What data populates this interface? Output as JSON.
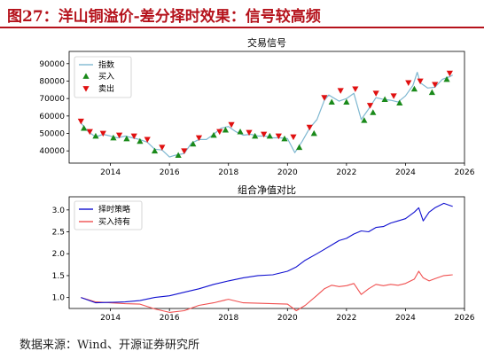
{
  "figure_title": "图27：洋山铜溢价-差分择时效果：信号较高频",
  "source": "数据来源：Wind、开源证券研究所",
  "colors": {
    "title_red": "#b5121b",
    "price_line": "#7fb8d1",
    "buy_marker": "#1a8a1a",
    "sell_marker": "#e01010",
    "strategy_line": "#1010d0",
    "hold_line": "#f05050"
  },
  "chart_data": [
    {
      "type": "line",
      "title": "交易信号",
      "xlabel": "",
      "ylabel": "",
      "xlim": [
        2012.6,
        2026.0
      ],
      "ylim": [
        33000,
        97000
      ],
      "xticks": [
        "2014",
        "2016",
        "2018",
        "2020",
        "2022",
        "2024",
        "2026"
      ],
      "yticks": [
        "40000",
        "50000",
        "60000",
        "70000",
        "80000",
        "90000"
      ],
      "grid": false,
      "legend_placement": "top-left",
      "legend": [
        {
          "label": "指数",
          "kind": "line"
        },
        {
          "label": "买入",
          "kind": "triangle-up"
        },
        {
          "label": "卖出",
          "kind": "triangle-down"
        }
      ],
      "series": [
        {
          "name": "指数",
          "x": [
            2013.0,
            2013.25,
            2013.5,
            2013.75,
            2014.0,
            2014.25,
            2014.5,
            2014.75,
            2015.0,
            2015.25,
            2015.5,
            2015.75,
            2016.0,
            2016.2,
            2016.5,
            2016.75,
            2017.0,
            2017.25,
            2017.5,
            2017.75,
            2018.0,
            2018.25,
            2018.5,
            2018.75,
            2019.0,
            2019.25,
            2019.5,
            2019.75,
            2020.0,
            2020.25,
            2020.5,
            2020.75,
            2021.0,
            2021.25,
            2021.4,
            2021.75,
            2022.0,
            2022.25,
            2022.5,
            2022.75,
            2023.0,
            2023.25,
            2023.5,
            2023.75,
            2024.0,
            2024.25,
            2024.4,
            2024.5,
            2024.75,
            2025.0,
            2025.25,
            2025.5,
            2025.6
          ],
          "values": [
            56000,
            51000,
            48000,
            49500,
            48500,
            47500,
            48500,
            47500,
            46500,
            45000,
            41000,
            40500,
            36500,
            37500,
            38500,
            44500,
            46500,
            46500,
            49500,
            53000,
            54000,
            51000,
            49000,
            49500,
            48500,
            48500,
            47500,
            47500,
            47000,
            39000,
            45500,
            53000,
            58000,
            69000,
            72000,
            68500,
            70000,
            73000,
            58000,
            64000,
            70500,
            69500,
            69000,
            68000,
            71500,
            77500,
            85000,
            79000,
            76000,
            76500,
            81000,
            82500,
            83500
          ]
        }
      ],
      "signals": {
        "buy": {
          "x": [
            2013.1,
            2013.5,
            2014.1,
            2014.55,
            2015.0,
            2015.5,
            2016.3,
            2016.8,
            2017.5,
            2017.9,
            2018.4,
            2018.9,
            2019.4,
            2019.9,
            2020.4,
            2020.9,
            2021.5,
            2022.0,
            2022.6,
            2022.9,
            2023.3,
            2023.8,
            2024.3,
            2024.9,
            2025.4
          ],
          "values": [
            53000,
            48500,
            47500,
            47000,
            45500,
            40000,
            37500,
            44000,
            49000,
            52000,
            51000,
            48500,
            48500,
            47000,
            42000,
            50000,
            68000,
            68000,
            57500,
            62000,
            69500,
            67500,
            75500,
            73500,
            81000
          ]
        },
        "sell": {
          "x": [
            2013.0,
            2013.3,
            2013.75,
            2014.3,
            2014.8,
            2015.25,
            2015.75,
            2016.5,
            2017.0,
            2017.7,
            2018.1,
            2018.7,
            2019.2,
            2019.7,
            2020.2,
            2020.75,
            2021.25,
            2021.8,
            2022.3,
            2022.8,
            2023.0,
            2023.6,
            2024.1,
            2024.5,
            2025.0,
            2025.5
          ],
          "values": [
            57000,
            51000,
            50000,
            49000,
            48500,
            46500,
            42000,
            40000,
            47500,
            51000,
            55000,
            50500,
            49500,
            48500,
            48000,
            53500,
            70500,
            74500,
            75500,
            66000,
            73000,
            71500,
            79000,
            80000,
            78000,
            84500
          ]
        }
      }
    },
    {
      "type": "line",
      "title": "组合净值对比",
      "xlabel": "",
      "ylabel": "",
      "xlim": [
        2012.6,
        2026.0
      ],
      "ylim": [
        0.75,
        3.3
      ],
      "xticks": [
        "2014",
        "2016",
        "2018",
        "2020",
        "2022",
        "2024",
        "2026"
      ],
      "yticks": [
        "1.0",
        "1.5",
        "2.0",
        "2.5",
        "3.0"
      ],
      "grid": false,
      "legend_placement": "top-left",
      "series": [
        {
          "name": "择时策略",
          "x": [
            2013.0,
            2013.5,
            2014.0,
            2014.5,
            2015.0,
            2015.5,
            2016.0,
            2016.5,
            2017.0,
            2017.5,
            2018.0,
            2018.5,
            2019.0,
            2019.5,
            2020.0,
            2020.3,
            2020.6,
            2021.0,
            2021.25,
            2021.5,
            2021.75,
            2022.0,
            2022.25,
            2022.5,
            2022.75,
            2023.0,
            2023.25,
            2023.5,
            2023.75,
            2024.0,
            2024.3,
            2024.45,
            2024.6,
            2024.8,
            2025.0,
            2025.3,
            2025.6
          ],
          "values": [
            1.0,
            0.88,
            0.89,
            0.9,
            0.93,
            1.0,
            1.04,
            1.12,
            1.2,
            1.3,
            1.38,
            1.45,
            1.5,
            1.52,
            1.6,
            1.7,
            1.85,
            2.0,
            2.1,
            2.2,
            2.3,
            2.35,
            2.45,
            2.52,
            2.5,
            2.6,
            2.62,
            2.7,
            2.75,
            2.8,
            2.95,
            3.05,
            2.75,
            2.95,
            3.05,
            3.15,
            3.08
          ]
        },
        {
          "name": "买入持有",
          "x": [
            2013.0,
            2013.5,
            2014.0,
            2014.5,
            2015.0,
            2015.5,
            2016.0,
            2016.5,
            2017.0,
            2017.5,
            2018.0,
            2018.5,
            2019.0,
            2019.5,
            2020.0,
            2020.3,
            2020.6,
            2021.0,
            2021.25,
            2021.5,
            2021.75,
            2022.0,
            2022.25,
            2022.5,
            2022.75,
            2023.0,
            2023.25,
            2023.5,
            2023.75,
            2024.0,
            2024.3,
            2024.45,
            2024.6,
            2024.8,
            2025.0,
            2025.3,
            2025.6
          ],
          "values": [
            1.0,
            0.9,
            0.88,
            0.86,
            0.85,
            0.74,
            0.66,
            0.7,
            0.82,
            0.88,
            0.96,
            0.88,
            0.87,
            0.86,
            0.85,
            0.7,
            0.82,
            1.05,
            1.2,
            1.28,
            1.25,
            1.27,
            1.32,
            1.07,
            1.2,
            1.3,
            1.27,
            1.3,
            1.28,
            1.32,
            1.42,
            1.6,
            1.45,
            1.38,
            1.43,
            1.5,
            1.52
          ]
        }
      ]
    }
  ]
}
